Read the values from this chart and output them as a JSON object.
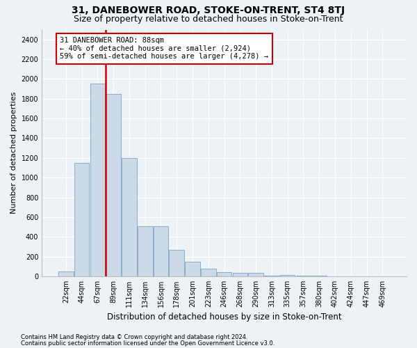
{
  "title": "31, DANEBOWER ROAD, STOKE-ON-TRENT, ST4 8TJ",
  "subtitle": "Size of property relative to detached houses in Stoke-on-Trent",
  "xlabel": "Distribution of detached houses by size in Stoke-on-Trent",
  "ylabel": "Number of detached properties",
  "footnote1": "Contains HM Land Registry data © Crown copyright and database right 2024.",
  "footnote2": "Contains public sector information licensed under the Open Government Licence v3.0.",
  "bar_labels": [
    "22sqm",
    "44sqm",
    "67sqm",
    "89sqm",
    "111sqm",
    "134sqm",
    "156sqm",
    "178sqm",
    "201sqm",
    "223sqm",
    "246sqm",
    "268sqm",
    "290sqm",
    "313sqm",
    "335sqm",
    "357sqm",
    "380sqm",
    "402sqm",
    "424sqm",
    "447sqm",
    "469sqm"
  ],
  "bar_values": [
    50,
    1150,
    1950,
    1850,
    1200,
    510,
    510,
    270,
    150,
    75,
    40,
    35,
    35,
    10,
    15,
    5,
    5,
    3,
    2,
    1,
    1
  ],
  "bar_color": "#ccd9e8",
  "bar_edge_color": "#8aafc8",
  "vline_index": 3,
  "vline_color": "#cc0000",
  "annotation_text": "31 DANEBOWER ROAD: 88sqm\n← 40% of detached houses are smaller (2,924)\n59% of semi-detached houses are larger (4,278) →",
  "annotation_box_facecolor": "white",
  "annotation_box_edgecolor": "#cc0000",
  "ylim": [
    0,
    2500
  ],
  "yticks": [
    0,
    200,
    400,
    600,
    800,
    1000,
    1200,
    1400,
    1600,
    1800,
    2000,
    2200,
    2400
  ],
  "bg_color": "#edf2f7",
  "grid_color": "white",
  "title_fontsize": 10,
  "subtitle_fontsize": 9,
  "ylabel_fontsize": 8,
  "xlabel_fontsize": 8.5,
  "tick_fontsize": 7,
  "footnote_fontsize": 6,
  "annot_fontsize": 7.5
}
